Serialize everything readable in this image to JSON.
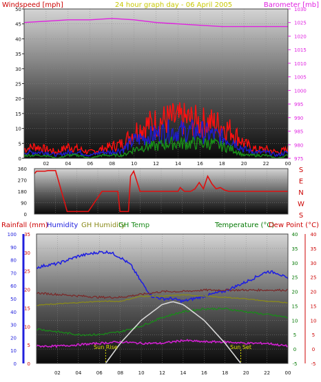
{
  "colors": {
    "background": "#ffffff",
    "panel_top": "#d4d4d4",
    "panel_bottom": "#0a0a0a",
    "wind_red": "#ff1010",
    "wind_blue": "#1d1dcf",
    "wind_green": "#189018",
    "barometer": "#e020e0",
    "wind_dir": "#e01010",
    "humidity": "#2020e0",
    "gh_humidity": "#8a8a1a",
    "gh_temp": "#1a8a1a",
    "temperature": "#7a2a2a",
    "dew_point": "#d020d0",
    "sun": "#d8d8d8",
    "title": "#c8c800",
    "axis_dark": "#111111",
    "axis_magenta": "#e020e0",
    "axis_red": "#cc0000",
    "axis_blue": "#2020dd",
    "axis_green": "#007700",
    "axis_darkred": "#cc0000"
  },
  "chart_data": [
    {
      "type": "line",
      "title": "24 hour graph day - 06 April 2005",
      "left_axis_label": "Windspeed [mph]",
      "right_axis_label": "Barometer [mb]",
      "x_ticks": [
        "02",
        "04",
        "06",
        "08",
        "10",
        "12",
        "14",
        "16",
        "18",
        "20",
        "22",
        "00"
      ],
      "x_range": [
        0,
        24
      ],
      "y_left_ticks": [
        "0",
        "5",
        "10",
        "15",
        "20",
        "25",
        "30",
        "35",
        "40",
        "45",
        "50"
      ],
      "y_left_range": [
        0,
        50
      ],
      "y_right_ticks": [
        "975",
        "980",
        "985",
        "990",
        "995",
        "1000",
        "1005",
        "1010",
        "1015",
        "1020",
        "1025",
        "1030"
      ],
      "y_right_range": [
        975,
        1030
      ],
      "grid": true,
      "series": [
        {
          "key": "gust",
          "values_x": [
            0,
            1,
            2,
            3,
            4,
            5,
            6,
            7,
            8,
            9,
            10,
            11,
            12,
            13,
            14,
            15,
            16,
            17,
            18,
            19,
            20,
            21,
            22,
            23,
            24
          ],
          "values": [
            3,
            4,
            3,
            2,
            4,
            3,
            2,
            3,
            4,
            5,
            9,
            11,
            12,
            13,
            13,
            13,
            12,
            12,
            11,
            9,
            5,
            3,
            3,
            2,
            3
          ]
        },
        {
          "key": "average",
          "values_x": [
            0,
            1,
            2,
            3,
            4,
            5,
            6,
            7,
            8,
            9,
            10,
            11,
            12,
            13,
            14,
            15,
            16,
            17,
            18,
            19,
            20,
            21,
            22,
            23,
            24
          ],
          "values": [
            2,
            2,
            2,
            1,
            2,
            2,
            1,
            2,
            2,
            3,
            6,
            7,
            8,
            9,
            9,
            9,
            9,
            8,
            7,
            6,
            3,
            2,
            2,
            1,
            2
          ]
        },
        {
          "key": "lowest",
          "values_x": [
            0,
            1,
            2,
            3,
            4,
            5,
            6,
            7,
            8,
            9,
            10,
            11,
            12,
            13,
            14,
            15,
            16,
            17,
            18,
            19,
            20,
            21,
            22,
            23,
            24
          ],
          "values": [
            1,
            1,
            1,
            0,
            1,
            1,
            0,
            1,
            1,
            1,
            3,
            4,
            4,
            5,
            5,
            5,
            5,
            5,
            4,
            3,
            1,
            1,
            1,
            0,
            1
          ]
        },
        {
          "key": "barometer",
          "axis": "right",
          "values_x": [
            0,
            2,
            4,
            6,
            8,
            10,
            12,
            14,
            16,
            18,
            20,
            22,
            24
          ],
          "values": [
            1025,
            1025.5,
            1026,
            1026,
            1026.5,
            1026,
            1025,
            1024.5,
            1024,
            1023.5,
            1023.5,
            1023.5,
            1023.5
          ]
        }
      ]
    },
    {
      "type": "line",
      "right_axis_label": [
        "S",
        "E",
        "N",
        "W",
        "S"
      ],
      "y_left_ticks": [
        "0",
        "90",
        "180",
        "270",
        "360"
      ],
      "y_left_range": [
        0,
        360
      ],
      "x_range": [
        0,
        24
      ],
      "series": [
        {
          "key": "wind_direction",
          "values_x": [
            0,
            0.2,
            0.8,
            1,
            1.3,
            2,
            3.1,
            3.3,
            4.9,
            5.1,
            6.4,
            6.6,
            7.9,
            8.1,
            8.5,
            8.7,
            8.9,
            9.1,
            9.4,
            10,
            11,
            12,
            13,
            13.6,
            13.8,
            14.2,
            14.8,
            15.2,
            15.6,
            16,
            16.4,
            16.8,
            17.2,
            17.6,
            18,
            18.4,
            19,
            20,
            22,
            24
          ],
          "values": [
            320,
            340,
            340,
            340,
            345,
            345,
            20,
            20,
            20,
            20,
            180,
            180,
            180,
            20,
            20,
            20,
            20,
            300,
            340,
            180,
            180,
            180,
            180,
            180,
            210,
            180,
            180,
            200,
            250,
            200,
            300,
            240,
            200,
            210,
            190,
            180,
            180,
            180,
            180,
            180
          ]
        }
      ]
    },
    {
      "type": "line",
      "labels": {
        "rainfall": "Rainfall (mm)",
        "humidity": "Humidity",
        "gh_humidity": "GH Humidity",
        "gh_temp": "GH Temp",
        "temperature": "Temperature (°C)",
        "dew_point": "Dew Point (°C)"
      },
      "annotations": {
        "sun_rise": "Sun Rise",
        "sun_set": "Sun Set"
      },
      "x_ticks": [
        "02",
        "04",
        "06",
        "08",
        "10",
        "12",
        "14",
        "16",
        "18",
        "20",
        "22",
        "00"
      ],
      "x_range": [
        0,
        24
      ],
      "humidity_ticks": [
        "0",
        "10",
        "20",
        "30",
        "40",
        "50",
        "60",
        "70",
        "80",
        "90",
        "100"
      ],
      "humidity_range": [
        0,
        100
      ],
      "rain_ticks": [
        "0",
        "5",
        "10",
        "15",
        "20",
        "25",
        "30",
        "35"
      ],
      "rain_range": [
        0,
        35
      ],
      "temp_ticks": [
        "-5",
        "0",
        "5",
        "10",
        "15",
        "20",
        "25",
        "30",
        "35",
        "40"
      ],
      "temp_range": [
        -5,
        40
      ],
      "sun_rise_hour": 6.6,
      "sun_set_hour": 19.5,
      "series": [
        {
          "key": "humidity",
          "axis": "humidity",
          "values_x": [
            0,
            1,
            2,
            4,
            6,
            7,
            8,
            9,
            10,
            11,
            12,
            13,
            14,
            15,
            16,
            18,
            20,
            22,
            23,
            24
          ],
          "values": [
            74,
            76,
            77,
            83,
            86,
            86,
            82,
            76,
            63,
            52,
            50,
            50,
            48,
            50,
            52,
            56,
            63,
            71,
            70,
            65
          ]
        },
        {
          "key": "temperature",
          "axis": "temp",
          "values_x": [
            0,
            2,
            4,
            6,
            8,
            10,
            12,
            14,
            16,
            18,
            20,
            22,
            24
          ],
          "values": [
            19.5,
            19,
            18.5,
            18,
            18,
            19,
            20,
            20,
            20.5,
            20.5,
            20.5,
            20.5,
            20.5
          ]
        },
        {
          "key": "gh_humidity",
          "axis": "humidity",
          "values_x": [
            0,
            2,
            4,
            6,
            8,
            9,
            10,
            12,
            14,
            16,
            18,
            20,
            22,
            24
          ],
          "values": [
            45,
            46,
            47,
            48,
            48,
            50,
            52,
            52,
            53,
            52,
            51,
            50,
            48,
            47
          ]
        },
        {
          "key": "gh_temp",
          "axis": "temp",
          "values_x": [
            0,
            2,
            4,
            6,
            8,
            10,
            12,
            14,
            16,
            18,
            20,
            22,
            24
          ],
          "values": [
            7,
            6,
            5,
            5,
            6,
            8,
            11,
            13,
            14,
            14,
            13,
            12,
            11
          ]
        },
        {
          "key": "dew_point",
          "axis": "temp",
          "values_x": [
            0,
            2,
            4,
            6,
            8,
            10,
            12,
            14,
            16,
            18,
            20,
            22,
            24
          ],
          "values": [
            1,
            1,
            1.5,
            2,
            2.5,
            2,
            2,
            3,
            2.5,
            2.5,
            2,
            2,
            1
          ]
        },
        {
          "key": "sun_elevation",
          "axis": "temp",
          "values_x": [
            6.6,
            8,
            10,
            12,
            13,
            14,
            16,
            18,
            19.5
          ],
          "values": [
            -5,
            2,
            10,
            15.5,
            16.5,
            15.5,
            10,
            2,
            -5
          ]
        }
      ]
    }
  ]
}
